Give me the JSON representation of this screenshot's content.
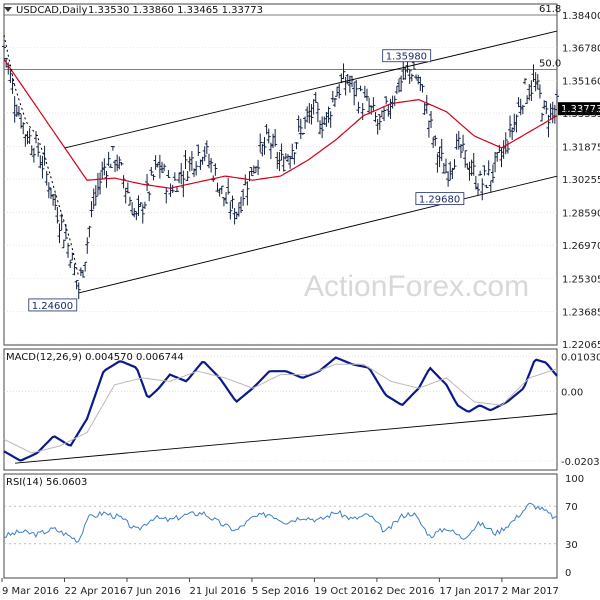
{
  "header": {
    "symbol": "USDCAD,Daily",
    "ohlc": "1.33530 1.33860 1.33465 1.33773"
  },
  "watermark": "ActionForex.com",
  "colors": {
    "bars": "#14203f",
    "ma": "#d4001a",
    "macd": "#0a1a8c",
    "signal": "#b9b9b9",
    "rsi": "#3d7ec8",
    "grid": "#d6d6d6",
    "trend": "#000000"
  },
  "chart_data": [
    {
      "type": "candlestick",
      "title": "USDCAD,Daily",
      "x_tick_labels": [
        "9 Mar 2016",
        "22 Apr 2016",
        "7 Jun 2016",
        "21 Jul 2016",
        "5 Sep 2016",
        "19 Oct 2016",
        "2 Dec 2016",
        "17 Jan 2017",
        "2 Mar 2017"
      ],
      "y_tick_labels": [
        "1.38400",
        "1.36780",
        "1.35160",
        "1.33535",
        "1.31875",
        "1.30255",
        "1.28590",
        "1.26970",
        "1.25305",
        "1.23685",
        "1.22065"
      ],
      "ylim": [
        1.22065,
        1.384
      ],
      "last_price": "1.33773",
      "fib_levels": [
        {
          "label": "61.8",
          "value": 1.3865
        },
        {
          "label": "50.0",
          "value": 1.357
        }
      ],
      "annotations": [
        {
          "label": "1.35980",
          "value": 1.3598
        },
        {
          "label": "1.29680",
          "value": 1.2968
        },
        {
          "label": "1.24600",
          "value": 1.246
        }
      ],
      "price_path": [
        {
          "t": 0,
          "v": 1.368
        },
        {
          "t": 0.02,
          "v": 1.342
        },
        {
          "t": 0.04,
          "v": 1.325
        },
        {
          "t": 0.06,
          "v": 1.318
        },
        {
          "t": 0.08,
          "v": 1.302
        },
        {
          "t": 0.1,
          "v": 1.283
        },
        {
          "t": 0.12,
          "v": 1.266
        },
        {
          "t": 0.135,
          "v": 1.248
        },
        {
          "t": 0.145,
          "v": 1.262
        },
        {
          "t": 0.16,
          "v": 1.288
        },
        {
          "t": 0.18,
          "v": 1.308
        },
        {
          "t": 0.2,
          "v": 1.314
        },
        {
          "t": 0.22,
          "v": 1.3
        },
        {
          "t": 0.24,
          "v": 1.282
        },
        {
          "t": 0.26,
          "v": 1.296
        },
        {
          "t": 0.28,
          "v": 1.31
        },
        {
          "t": 0.3,
          "v": 1.298
        },
        {
          "t": 0.32,
          "v": 1.305
        },
        {
          "t": 0.34,
          "v": 1.312
        },
        {
          "t": 0.36,
          "v": 1.318
        },
        {
          "t": 0.38,
          "v": 1.306
        },
        {
          "t": 0.4,
          "v": 1.292
        },
        {
          "t": 0.42,
          "v": 1.286
        },
        {
          "t": 0.44,
          "v": 1.302
        },
        {
          "t": 0.46,
          "v": 1.314
        },
        {
          "t": 0.48,
          "v": 1.322
        },
        {
          "t": 0.5,
          "v": 1.31
        },
        {
          "t": 0.52,
          "v": 1.318
        },
        {
          "t": 0.54,
          "v": 1.328
        },
        {
          "t": 0.56,
          "v": 1.336
        },
        {
          "t": 0.58,
          "v": 1.33
        },
        {
          "t": 0.6,
          "v": 1.346
        },
        {
          "t": 0.62,
          "v": 1.352
        },
        {
          "t": 0.64,
          "v": 1.344
        },
        {
          "t": 0.66,
          "v": 1.338
        },
        {
          "t": 0.68,
          "v": 1.328
        },
        {
          "t": 0.7,
          "v": 1.342
        },
        {
          "t": 0.72,
          "v": 1.352
        },
        {
          "t": 0.74,
          "v": 1.358
        },
        {
          "t": 0.76,
          "v": 1.342
        },
        {
          "t": 0.78,
          "v": 1.318
        },
        {
          "t": 0.8,
          "v": 1.306
        },
        {
          "t": 0.82,
          "v": 1.318
        },
        {
          "t": 0.84,
          "v": 1.31
        },
        {
          "t": 0.86,
          "v": 1.3
        },
        {
          "t": 0.88,
          "v": 1.304
        },
        {
          "t": 0.9,
          "v": 1.314
        },
        {
          "t": 0.92,
          "v": 1.328
        },
        {
          "t": 0.94,
          "v": 1.346
        },
        {
          "t": 0.96,
          "v": 1.35
        },
        {
          "t": 0.98,
          "v": 1.334
        },
        {
          "t": 1.0,
          "v": 1.338
        }
      ],
      "ma_path": [
        {
          "t": 0,
          "v": 1.362
        },
        {
          "t": 0.05,
          "v": 1.342
        },
        {
          "t": 0.1,
          "v": 1.322
        },
        {
          "t": 0.15,
          "v": 1.302
        },
        {
          "t": 0.2,
          "v": 1.303
        },
        {
          "t": 0.25,
          "v": 1.3
        },
        {
          "t": 0.3,
          "v": 1.298
        },
        {
          "t": 0.35,
          "v": 1.301
        },
        {
          "t": 0.4,
          "v": 1.304
        },
        {
          "t": 0.45,
          "v": 1.302
        },
        {
          "t": 0.5,
          "v": 1.304
        },
        {
          "t": 0.55,
          "v": 1.312
        },
        {
          "t": 0.6,
          "v": 1.322
        },
        {
          "t": 0.65,
          "v": 1.334
        },
        {
          "t": 0.7,
          "v": 1.34
        },
        {
          "t": 0.75,
          "v": 1.342
        },
        {
          "t": 0.8,
          "v": 1.336
        },
        {
          "t": 0.85,
          "v": 1.324
        },
        {
          "t": 0.9,
          "v": 1.318
        },
        {
          "t": 0.95,
          "v": 1.326
        },
        {
          "t": 1.0,
          "v": 1.334
        }
      ],
      "channel": {
        "upper": [
          {
            "t": 0.11,
            "v": 1.318
          },
          {
            "t": 1.0,
            "v": 1.376
          }
        ],
        "lower": [
          {
            "t": 0.135,
            "v": 1.246
          },
          {
            "t": 1.0,
            "v": 1.304
          }
        ]
      }
    },
    {
      "type": "line",
      "title": "MACD(12,26,9) 0.004570 0.006744",
      "y_tick_labels": [
        "0.010306",
        "0.00",
        "-0.020324"
      ],
      "ylim": [
        -0.023,
        0.0125
      ],
      "series": [
        {
          "name": "MACD",
          "values": [
            {
              "t": 0,
              "v": -0.0175
            },
            {
              "t": 0.03,
              "v": -0.0203
            },
            {
              "t": 0.06,
              "v": -0.018
            },
            {
              "t": 0.09,
              "v": -0.013
            },
            {
              "t": 0.12,
              "v": -0.016
            },
            {
              "t": 0.15,
              "v": -0.008
            },
            {
              "t": 0.18,
              "v": 0.006
            },
            {
              "t": 0.21,
              "v": 0.009
            },
            {
              "t": 0.24,
              "v": 0.007
            },
            {
              "t": 0.26,
              "v": -0.002
            },
            {
              "t": 0.28,
              "v": 0.001
            },
            {
              "t": 0.3,
              "v": 0.005
            },
            {
              "t": 0.33,
              "v": 0.003
            },
            {
              "t": 0.36,
              "v": 0.009
            },
            {
              "t": 0.39,
              "v": 0.004
            },
            {
              "t": 0.42,
              "v": -0.003
            },
            {
              "t": 0.45,
              "v": 0.001
            },
            {
              "t": 0.48,
              "v": 0.006
            },
            {
              "t": 0.51,
              "v": 0.006
            },
            {
              "t": 0.54,
              "v": 0.004
            },
            {
              "t": 0.57,
              "v": 0.006
            },
            {
              "t": 0.6,
              "v": 0.01
            },
            {
              "t": 0.63,
              "v": 0.008
            },
            {
              "t": 0.66,
              "v": 0.007
            },
            {
              "t": 0.69,
              "v": -0.001
            },
            {
              "t": 0.72,
              "v": -0.004
            },
            {
              "t": 0.75,
              "v": 0.001
            },
            {
              "t": 0.77,
              "v": 0.007
            },
            {
              "t": 0.8,
              "v": 0.002
            },
            {
              "t": 0.82,
              "v": -0.004
            },
            {
              "t": 0.84,
              "v": -0.006
            },
            {
              "t": 0.86,
              "v": -0.004
            },
            {
              "t": 0.88,
              "v": -0.0055
            },
            {
              "t": 0.91,
              "v": -0.003
            },
            {
              "t": 0.94,
              "v": 0.001
            },
            {
              "t": 0.96,
              "v": 0.0095
            },
            {
              "t": 0.98,
              "v": 0.0085
            },
            {
              "t": 1.0,
              "v": 0.0046
            }
          ]
        },
        {
          "name": "Signal",
          "values": [
            {
              "t": 0,
              "v": -0.014
            },
            {
              "t": 0.05,
              "v": -0.018
            },
            {
              "t": 0.1,
              "v": -0.016
            },
            {
              "t": 0.15,
              "v": -0.012
            },
            {
              "t": 0.2,
              "v": 0.002
            },
            {
              "t": 0.25,
              "v": 0.004
            },
            {
              "t": 0.3,
              "v": 0.003
            },
            {
              "t": 0.35,
              "v": 0.006
            },
            {
              "t": 0.4,
              "v": 0.004
            },
            {
              "t": 0.45,
              "v": 0.001
            },
            {
              "t": 0.5,
              "v": 0.005
            },
            {
              "t": 0.55,
              "v": 0.005
            },
            {
              "t": 0.6,
              "v": 0.008
            },
            {
              "t": 0.65,
              "v": 0.008
            },
            {
              "t": 0.7,
              "v": 0.003
            },
            {
              "t": 0.75,
              "v": 0.001
            },
            {
              "t": 0.8,
              "v": 0.004
            },
            {
              "t": 0.85,
              "v": -0.003
            },
            {
              "t": 0.9,
              "v": -0.004
            },
            {
              "t": 0.95,
              "v": 0.004
            },
            {
              "t": 1.0,
              "v": 0.0067
            }
          ]
        }
      ],
      "trendline": [
        {
          "t": 0.02,
          "v": -0.021
        },
        {
          "t": 1.0,
          "v": -0.0065
        }
      ]
    },
    {
      "type": "line",
      "title": "RSI(14) 56.0603",
      "y_tick_labels": [
        "100",
        "70",
        "30",
        "0"
      ],
      "ylim": [
        0,
        100
      ],
      "guides": [
        70,
        30
      ],
      "series": [
        {
          "name": "RSI",
          "values": [
            {
              "t": 0,
              "v": 38
            },
            {
              "t": 0.03,
              "v": 43
            },
            {
              "t": 0.06,
              "v": 40
            },
            {
              "t": 0.09,
              "v": 46
            },
            {
              "t": 0.12,
              "v": 38
            },
            {
              "t": 0.135,
              "v": 33
            },
            {
              "t": 0.15,
              "v": 57
            },
            {
              "t": 0.18,
              "v": 63
            },
            {
              "t": 0.21,
              "v": 58
            },
            {
              "t": 0.24,
              "v": 44
            },
            {
              "t": 0.27,
              "v": 58
            },
            {
              "t": 0.3,
              "v": 55
            },
            {
              "t": 0.33,
              "v": 61
            },
            {
              "t": 0.36,
              "v": 63
            },
            {
              "t": 0.39,
              "v": 52
            },
            {
              "t": 0.42,
              "v": 44
            },
            {
              "t": 0.45,
              "v": 58
            },
            {
              "t": 0.48,
              "v": 62
            },
            {
              "t": 0.51,
              "v": 53
            },
            {
              "t": 0.54,
              "v": 59
            },
            {
              "t": 0.57,
              "v": 55
            },
            {
              "t": 0.6,
              "v": 64
            },
            {
              "t": 0.63,
              "v": 56
            },
            {
              "t": 0.66,
              "v": 61
            },
            {
              "t": 0.69,
              "v": 42
            },
            {
              "t": 0.72,
              "v": 60
            },
            {
              "t": 0.74,
              "v": 63
            },
            {
              "t": 0.77,
              "v": 38
            },
            {
              "t": 0.8,
              "v": 47
            },
            {
              "t": 0.83,
              "v": 36
            },
            {
              "t": 0.86,
              "v": 52
            },
            {
              "t": 0.89,
              "v": 41
            },
            {
              "t": 0.92,
              "v": 54
            },
            {
              "t": 0.95,
              "v": 72
            },
            {
              "t": 0.97,
              "v": 68
            },
            {
              "t": 1.0,
              "v": 56
            }
          ]
        }
      ]
    }
  ]
}
